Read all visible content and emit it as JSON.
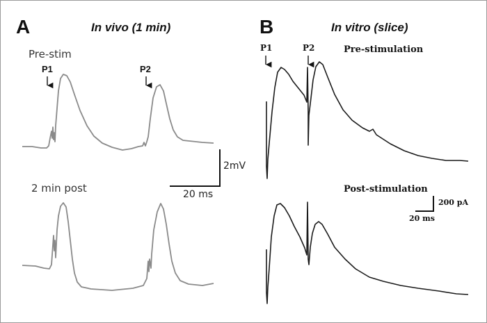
{
  "figure": {
    "panel_a": {
      "letter": "A",
      "title": "In vivo (1 min)",
      "conditions": [
        "Pre-stim",
        "2 min post"
      ],
      "pulse_labels": [
        "P1",
        "P2"
      ],
      "scale_bar": {
        "y_label": "2mV",
        "x_label": "20 ms"
      },
      "trace_color": "#8a8a8a"
    },
    "panel_b": {
      "letter": "B",
      "title": "In vitro (slice)",
      "conditions": [
        "Pre-stimulation",
        "Post-stimulation"
      ],
      "pulse_labels": [
        "P1",
        "P2"
      ],
      "scale_bar": {
        "y_label": "200 pA",
        "x_label": "20 ms"
      },
      "trace_color": "#1a1a1a"
    }
  }
}
